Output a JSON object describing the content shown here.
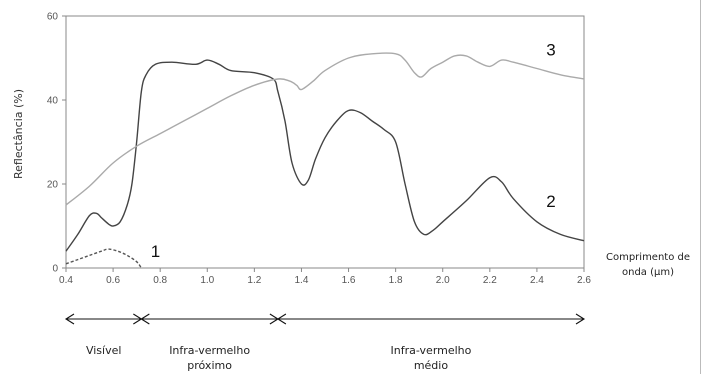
{
  "chart_data": {
    "type": "line",
    "ylabel": "Reflectância (%)",
    "xlabel_lines": [
      "Comprimento de",
      "onda (µm)"
    ],
    "xlim": [
      0.4,
      2.6
    ],
    "ylim": [
      0,
      60
    ],
    "xticks": [
      "0.4",
      "0.6",
      "0.8",
      "1.0",
      "1.2",
      "1.4",
      "1.6",
      "1.8",
      "2.0",
      "2.2",
      "2.4",
      "2.6"
    ],
    "yticks": [
      "0",
      "20",
      "40",
      "60"
    ],
    "grid": false,
    "series": [
      {
        "name": "1",
        "style": "dashed",
        "color": "#555555",
        "x": [
          0.4,
          0.45,
          0.5,
          0.55,
          0.58,
          0.62,
          0.66,
          0.7,
          0.72
        ],
        "y": [
          1.0,
          2.0,
          3.0,
          4.0,
          4.5,
          4.0,
          3.0,
          1.5,
          0.0
        ]
      },
      {
        "name": "2",
        "style": "solid",
        "color": "#444444",
        "x": [
          0.4,
          0.45,
          0.5,
          0.53,
          0.55,
          0.58,
          0.6,
          0.63,
          0.66,
          0.68,
          0.7,
          0.72,
          0.74,
          0.78,
          0.85,
          0.95,
          1.0,
          1.05,
          1.1,
          1.2,
          1.28,
          1.3,
          1.33,
          1.36,
          1.4,
          1.43,
          1.46,
          1.5,
          1.55,
          1.6,
          1.65,
          1.7,
          1.75,
          1.8,
          1.84,
          1.88,
          1.92,
          1.96,
          2.0,
          2.1,
          2.2,
          2.25,
          2.3,
          2.4,
          2.5,
          2.6
        ],
        "y": [
          4,
          8,
          12.5,
          13,
          12,
          10.5,
          10,
          11,
          15,
          20,
          30,
          42,
          46,
          48.5,
          49,
          48.5,
          49.5,
          48.5,
          47,
          46.5,
          45,
          42,
          35,
          25,
          20,
          21,
          26,
          31,
          35,
          37.5,
          37,
          35,
          33,
          30,
          20,
          11,
          8,
          9,
          11,
          16,
          21.5,
          20.5,
          16.5,
          11,
          8,
          6.5
        ]
      },
      {
        "name": "3",
        "style": "solid",
        "color": "#aaaaaa",
        "x": [
          0.4,
          0.5,
          0.6,
          0.7,
          0.8,
          0.9,
          1.0,
          1.1,
          1.2,
          1.3,
          1.35,
          1.38,
          1.4,
          1.45,
          1.5,
          1.6,
          1.7,
          1.8,
          1.84,
          1.88,
          1.91,
          1.95,
          2.0,
          2.05,
          2.1,
          2.15,
          2.2,
          2.25,
          2.3,
          2.4,
          2.5,
          2.6
        ],
        "y": [
          15,
          19.5,
          25,
          29,
          32,
          35,
          38,
          41,
          43.5,
          45,
          44.5,
          43.5,
          42.5,
          44.5,
          47,
          50,
          51,
          51,
          49.5,
          46.5,
          45.5,
          47.5,
          49,
          50.5,
          50.5,
          49,
          48,
          49.5,
          49,
          47.5,
          46,
          45
        ]
      }
    ],
    "regions": [
      {
        "label_lines": [
          "Visível"
        ],
        "x_start": 0.4,
        "x_end": 0.72
      },
      {
        "label_lines": [
          "Infra-vermelho",
          "próximo"
        ],
        "x_start": 0.72,
        "x_end": 1.3
      },
      {
        "label_lines": [
          "Infra-vermelho",
          "médio"
        ],
        "x_start": 1.3,
        "x_end": 2.6
      }
    ],
    "curve_labels": [
      {
        "text": "1",
        "x": 0.78,
        "y": 4
      },
      {
        "text": "2",
        "x": 2.46,
        "y": 16
      },
      {
        "text": "3",
        "x": 2.46,
        "y": 52
      }
    ]
  }
}
